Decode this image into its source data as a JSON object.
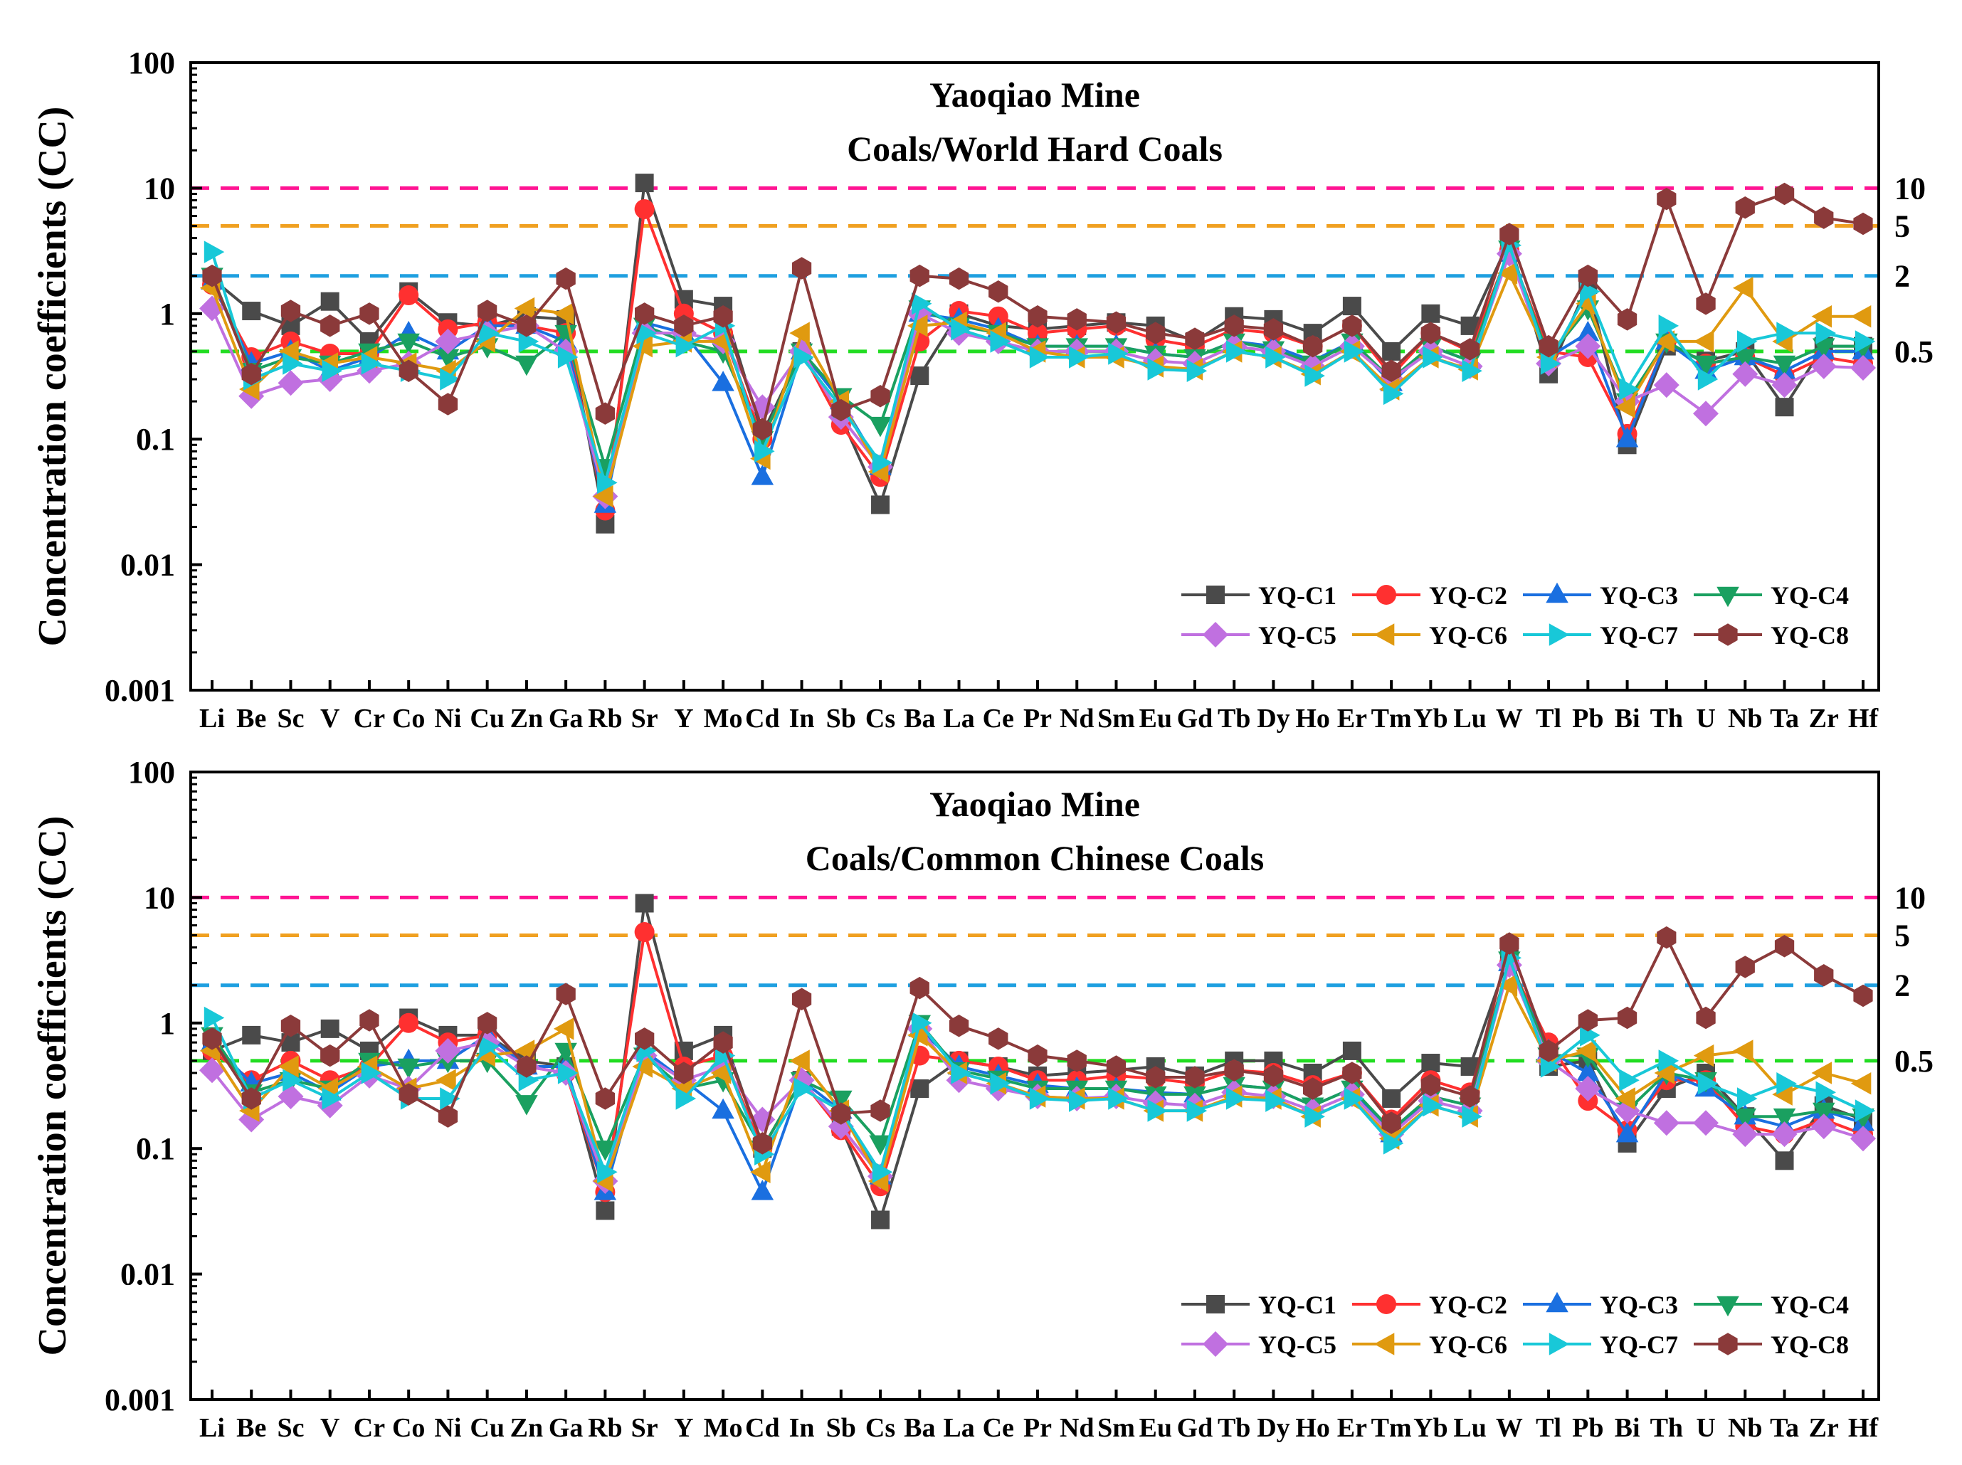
{
  "chart_data": [
    {
      "type": "line",
      "scale": "log",
      "title_line1": "Yaoqiao Mine",
      "title_line2": "Coals/World Hard Coals",
      "ylabel": "Concentration coefficients (CC)",
      "ylim": [
        0.001,
        100
      ],
      "y_ticks": [
        "0.001",
        "0.01",
        "0.1",
        "1",
        "10",
        "100"
      ],
      "legend_position": "bottom-right",
      "categories": [
        "Li",
        "Be",
        "Sc",
        "V",
        "Cr",
        "Co",
        "Ni",
        "Cu",
        "Zn",
        "Ga",
        "Rb",
        "Sr",
        "Y",
        "Mo",
        "Cd",
        "In",
        "Sb",
        "Cs",
        "Ba",
        "La",
        "Ce",
        "Pr",
        "Nd",
        "Sm",
        "Eu",
        "Gd",
        "Tb",
        "Dy",
        "Ho",
        "Er",
        "Tm",
        "Yb",
        "Lu",
        "W",
        "Tl",
        "Pb",
        "Bi",
        "Th",
        "U",
        "Nb",
        "Ta",
        "Zr",
        "Hf"
      ],
      "reference_lines": [
        {
          "value": 10,
          "label": "10",
          "color": "#ff1493"
        },
        {
          "value": 5,
          "label": "5",
          "color": "#f0a020"
        },
        {
          "value": 2,
          "label": "2",
          "color": "#1e9fe0"
        },
        {
          "value": 0.5,
          "label": "0.5",
          "color": "#22dd22"
        }
      ],
      "series": [
        {
          "name": "YQ-C1",
          "color": "#4a4a4a",
          "marker": "square",
          "values": [
            1.9,
            1.05,
            0.8,
            1.25,
            0.6,
            1.5,
            0.85,
            0.8,
            0.95,
            0.9,
            0.021,
            11,
            1.3,
            1.15,
            0.11,
            0.5,
            0.15,
            0.03,
            0.32,
            1.0,
            0.8,
            0.75,
            0.8,
            0.85,
            0.8,
            0.6,
            0.95,
            0.9,
            0.7,
            1.15,
            0.5,
            1.0,
            0.8,
            3.8,
            0.33,
            1.7,
            0.09,
            0.55,
            0.42,
            0.5,
            0.18,
            0.55,
            0.55
          ]
        },
        {
          "name": "YQ-C2",
          "color": "#ff3030",
          "marker": "circle",
          "values": [
            1.7,
            0.45,
            0.6,
            0.48,
            0.48,
            1.4,
            0.75,
            0.85,
            0.8,
            0.7,
            0.027,
            6.8,
            1.0,
            0.7,
            0.1,
            0.5,
            0.13,
            0.05,
            0.6,
            1.05,
            0.95,
            0.7,
            0.75,
            0.8,
            0.62,
            0.55,
            0.75,
            0.7,
            0.55,
            0.8,
            0.32,
            0.7,
            0.5,
            3.2,
            0.5,
            0.45,
            0.11,
            0.6,
            0.4,
            0.45,
            0.32,
            0.45,
            0.4
          ]
        },
        {
          "name": "YQ-C3",
          "color": "#1a6fe0",
          "marker": "triangle-up",
          "values": [
            1.8,
            0.4,
            0.5,
            0.35,
            0.45,
            0.7,
            0.5,
            0.8,
            0.8,
            0.6,
            0.03,
            0.85,
            0.7,
            0.28,
            0.05,
            0.5,
            0.2,
            0.06,
            1.0,
            0.9,
            0.75,
            0.55,
            0.55,
            0.55,
            0.48,
            0.45,
            0.6,
            0.55,
            0.42,
            0.6,
            0.28,
            0.55,
            0.42,
            3.0,
            0.45,
            0.7,
            0.1,
            0.6,
            0.35,
            0.45,
            0.35,
            0.5,
            0.5
          ]
        },
        {
          "name": "YQ-C4",
          "color": "#1aa060",
          "marker": "triangle-down",
          "values": [
            2.0,
            0.35,
            0.45,
            0.4,
            0.5,
            0.6,
            0.45,
            0.55,
            0.4,
            0.7,
            0.06,
            0.8,
            0.6,
            0.5,
            0.1,
            0.5,
            0.22,
            0.13,
            1.1,
            0.8,
            0.7,
            0.55,
            0.55,
            0.55,
            0.48,
            0.45,
            0.6,
            0.52,
            0.4,
            0.6,
            0.3,
            0.55,
            0.42,
            3.3,
            0.45,
            1.1,
            0.2,
            0.6,
            0.4,
            0.45,
            0.4,
            0.55,
            0.55
          ]
        },
        {
          "name": "YQ-C5",
          "color": "#c070e0",
          "marker": "diamond",
          "values": [
            1.1,
            0.22,
            0.28,
            0.3,
            0.35,
            0.4,
            0.6,
            0.7,
            0.8,
            0.5,
            0.035,
            0.7,
            0.7,
            0.6,
            0.18,
            0.5,
            0.15,
            0.06,
            1.0,
            0.7,
            0.6,
            0.5,
            0.5,
            0.5,
            0.42,
            0.4,
            0.55,
            0.5,
            0.38,
            0.55,
            0.3,
            0.5,
            0.38,
            3.0,
            0.4,
            0.55,
            0.2,
            0.27,
            0.16,
            0.33,
            0.27,
            0.38,
            0.37
          ]
        },
        {
          "name": "YQ-C6",
          "color": "#e09a10",
          "marker": "triangle-left",
          "values": [
            1.6,
            0.25,
            0.5,
            0.4,
            0.45,
            0.4,
            0.35,
            0.6,
            1.1,
            1.0,
            0.035,
            0.55,
            0.6,
            0.6,
            0.07,
            0.7,
            0.2,
            0.055,
            0.8,
            0.85,
            0.7,
            0.5,
            0.45,
            0.45,
            0.38,
            0.36,
            0.5,
            0.45,
            0.33,
            0.5,
            0.25,
            0.45,
            0.36,
            2.1,
            0.45,
            1.2,
            0.18,
            0.6,
            0.6,
            1.6,
            0.6,
            0.95,
            0.95
          ]
        },
        {
          "name": "YQ-C7",
          "color": "#18c8d8",
          "marker": "triangle-right",
          "values": [
            3.1,
            0.3,
            0.4,
            0.35,
            0.4,
            0.35,
            0.3,
            0.7,
            0.6,
            0.45,
            0.045,
            0.7,
            0.55,
            0.8,
            0.08,
            0.45,
            0.18,
            0.065,
            1.2,
            0.75,
            0.6,
            0.45,
            0.45,
            0.48,
            0.36,
            0.35,
            0.5,
            0.45,
            0.32,
            0.5,
            0.23,
            0.45,
            0.35,
            3.5,
            0.4,
            1.5,
            0.25,
            0.8,
            0.3,
            0.6,
            0.7,
            0.7,
            0.6
          ]
        },
        {
          "name": "YQ-C8",
          "color": "#8b3a3a",
          "marker": "hexagon",
          "values": [
            2.0,
            0.33,
            1.05,
            0.8,
            1.0,
            0.35,
            0.19,
            1.05,
            0.8,
            1.9,
            0.16,
            1.0,
            0.8,
            0.95,
            0.12,
            2.3,
            0.17,
            0.22,
            2.0,
            1.9,
            1.5,
            0.95,
            0.9,
            0.85,
            0.7,
            0.63,
            0.8,
            0.75,
            0.55,
            0.8,
            0.35,
            0.7,
            0.52,
            4.3,
            0.55,
            2.0,
            0.9,
            8.2,
            1.2,
            7.0,
            9.0,
            5.8,
            5.2
          ]
        }
      ]
    },
    {
      "type": "line",
      "scale": "log",
      "title_line1": "Yaoqiao Mine",
      "title_line2": "Coals/Common Chinese Coals",
      "ylabel": "Concentration coefficients (CC)",
      "ylim": [
        0.001,
        100
      ],
      "y_ticks": [
        "0.001",
        "0.01",
        "0.1",
        "1",
        "10",
        "100"
      ],
      "legend_position": "bottom-right",
      "categories": [
        "Li",
        "Be",
        "Sc",
        "V",
        "Cr",
        "Co",
        "Ni",
        "Cu",
        "Zn",
        "Ga",
        "Rb",
        "Sr",
        "Y",
        "Mo",
        "Cd",
        "In",
        "Sb",
        "Cs",
        "Ba",
        "La",
        "Ce",
        "Pr",
        "Nd",
        "Sm",
        "Eu",
        "Gd",
        "Tb",
        "Dy",
        "Ho",
        "Er",
        "Tm",
        "Yb",
        "Lu",
        "W",
        "Tl",
        "Pb",
        "Bi",
        "Th",
        "U",
        "Nb",
        "Ta",
        "Zr",
        "Hf"
      ],
      "reference_lines": [
        {
          "value": 10,
          "label": "10",
          "color": "#ff1493"
        },
        {
          "value": 5,
          "label": "5",
          "color": "#f0a020"
        },
        {
          "value": 2,
          "label": "2",
          "color": "#1e9fe0"
        },
        {
          "value": 0.5,
          "label": "0.5",
          "color": "#22dd22"
        }
      ],
      "series": [
        {
          "name": "YQ-C1",
          "color": "#4a4a4a",
          "marker": "square",
          "values": [
            0.6,
            0.8,
            0.7,
            0.9,
            0.6,
            1.1,
            0.8,
            0.8,
            0.5,
            0.45,
            0.032,
            9.0,
            0.6,
            0.8,
            0.1,
            0.35,
            0.15,
            0.027,
            0.3,
            0.5,
            0.45,
            0.38,
            0.4,
            0.42,
            0.45,
            0.38,
            0.5,
            0.5,
            0.4,
            0.6,
            0.25,
            0.48,
            0.45,
            3.5,
            0.45,
            0.5,
            0.11,
            0.3,
            0.4,
            0.18,
            0.08,
            0.22,
            0.17
          ]
        },
        {
          "name": "YQ-C2",
          "color": "#ff3030",
          "marker": "circle",
          "values": [
            0.6,
            0.35,
            0.5,
            0.35,
            0.45,
            1.0,
            0.7,
            0.8,
            0.45,
            0.4,
            0.045,
            5.3,
            0.45,
            0.55,
            0.1,
            0.35,
            0.14,
            0.05,
            0.55,
            0.5,
            0.45,
            0.35,
            0.35,
            0.38,
            0.36,
            0.33,
            0.42,
            0.4,
            0.32,
            0.4,
            0.17,
            0.35,
            0.28,
            3.0,
            0.7,
            0.24,
            0.14,
            0.35,
            0.35,
            0.15,
            0.13,
            0.17,
            0.13
          ]
        },
        {
          "name": "YQ-C3",
          "color": "#1a6fe0",
          "marker": "triangle-up",
          "values": [
            0.7,
            0.33,
            0.4,
            0.28,
            0.45,
            0.5,
            0.5,
            0.8,
            0.45,
            0.45,
            0.045,
            0.6,
            0.35,
            0.2,
            0.045,
            0.35,
            0.2,
            0.06,
            0.9,
            0.45,
            0.38,
            0.32,
            0.3,
            0.3,
            0.28,
            0.27,
            0.32,
            0.3,
            0.22,
            0.3,
            0.13,
            0.26,
            0.22,
            3.0,
            0.6,
            0.4,
            0.13,
            0.4,
            0.3,
            0.18,
            0.15,
            0.2,
            0.16
          ]
        },
        {
          "name": "YQ-C4",
          "color": "#1aa060",
          "marker": "triangle-down",
          "values": [
            0.8,
            0.28,
            0.35,
            0.3,
            0.5,
            0.45,
            0.5,
            0.5,
            0.23,
            0.6,
            0.1,
            0.55,
            0.3,
            0.35,
            0.1,
            0.35,
            0.25,
            0.11,
            1.0,
            0.42,
            0.36,
            0.3,
            0.3,
            0.3,
            0.27,
            0.27,
            0.32,
            0.3,
            0.22,
            0.3,
            0.14,
            0.26,
            0.22,
            3.2,
            0.55,
            0.55,
            0.2,
            0.4,
            0.35,
            0.18,
            0.18,
            0.2,
            0.18
          ]
        },
        {
          "name": "YQ-C5",
          "color": "#c070e0",
          "marker": "diamond",
          "values": [
            0.42,
            0.17,
            0.26,
            0.22,
            0.38,
            0.3,
            0.6,
            0.7,
            0.45,
            0.4,
            0.055,
            0.55,
            0.35,
            0.45,
            0.17,
            0.35,
            0.15,
            0.06,
            0.9,
            0.35,
            0.3,
            0.26,
            0.25,
            0.26,
            0.23,
            0.22,
            0.28,
            0.26,
            0.2,
            0.27,
            0.13,
            0.24,
            0.2,
            2.9,
            0.5,
            0.3,
            0.2,
            0.16,
            0.16,
            0.13,
            0.13,
            0.15,
            0.12
          ]
        },
        {
          "name": "YQ-C6",
          "color": "#e09a10",
          "marker": "triangle-left",
          "values": [
            0.6,
            0.2,
            0.45,
            0.3,
            0.45,
            0.3,
            0.35,
            0.55,
            0.6,
            0.9,
            0.055,
            0.45,
            0.3,
            0.4,
            0.065,
            0.5,
            0.2,
            0.055,
            0.8,
            0.4,
            0.33,
            0.26,
            0.25,
            0.25,
            0.2,
            0.2,
            0.26,
            0.25,
            0.18,
            0.25,
            0.12,
            0.22,
            0.18,
            2.0,
            0.5,
            0.6,
            0.25,
            0.4,
            0.55,
            0.6,
            0.27,
            0.4,
            0.33
          ]
        },
        {
          "name": "YQ-C7",
          "color": "#18c8d8",
          "marker": "triangle-right",
          "values": [
            1.1,
            0.25,
            0.35,
            0.25,
            0.4,
            0.25,
            0.25,
            0.65,
            0.35,
            0.4,
            0.065,
            0.6,
            0.25,
            0.55,
            0.09,
            0.3,
            0.2,
            0.065,
            1.0,
            0.4,
            0.33,
            0.25,
            0.24,
            0.25,
            0.2,
            0.2,
            0.25,
            0.24,
            0.18,
            0.25,
            0.11,
            0.22,
            0.18,
            3.3,
            0.45,
            0.8,
            0.35,
            0.5,
            0.33,
            0.25,
            0.33,
            0.28,
            0.2
          ]
        },
        {
          "name": "YQ-C8",
          "color": "#8b3a3a",
          "marker": "hexagon",
          "values": [
            0.75,
            0.25,
            0.95,
            0.55,
            1.05,
            0.27,
            0.18,
            1.0,
            0.45,
            1.7,
            0.25,
            0.75,
            0.4,
            0.7,
            0.11,
            1.55,
            0.19,
            0.2,
            1.9,
            0.95,
            0.75,
            0.55,
            0.5,
            0.45,
            0.37,
            0.37,
            0.42,
            0.38,
            0.3,
            0.4,
            0.16,
            0.32,
            0.26,
            4.3,
            0.6,
            1.05,
            1.1,
            4.8,
            1.1,
            2.8,
            4.1,
            2.4,
            1.65
          ]
        }
      ]
    }
  ]
}
